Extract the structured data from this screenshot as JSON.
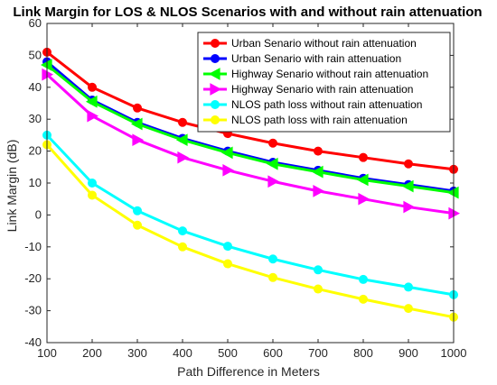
{
  "chart_data": {
    "type": "line",
    "title": "Link Margin for LOS & NLOS Scenarios with and without rain attenuation",
    "xlabel": "Path Difference in Meters",
    "ylabel": "Link Margin (dB)",
    "xlim": [
      100,
      1000
    ],
    "ylim": [
      -40,
      60
    ],
    "xticks": [
      100,
      200,
      300,
      400,
      500,
      600,
      700,
      800,
      900,
      1000
    ],
    "yticks": [
      -40,
      -30,
      -20,
      -10,
      0,
      10,
      20,
      30,
      40,
      50,
      60
    ],
    "grid": false,
    "legend_position": "top-right",
    "x": [
      100,
      200,
      300,
      400,
      500,
      600,
      700,
      800,
      900,
      1000
    ],
    "series": [
      {
        "name": "Urban Senario without rain attenuation",
        "color": "#ff0000",
        "marker": "circle",
        "values": [
          51,
          40,
          33.5,
          29,
          25.5,
          22.5,
          20,
          18,
          16,
          14.3
        ]
      },
      {
        "name": "Urban Senario with rain attenuation",
        "color": "#0000ff",
        "marker": "circle",
        "values": [
          48,
          36,
          29,
          24,
          20,
          16.5,
          14,
          11.5,
          9.5,
          7.5
        ]
      },
      {
        "name": "Highway Senario without rain attenuation",
        "color": "#00ff00",
        "marker": "triangle-left",
        "values": [
          47,
          35.5,
          28.5,
          23.5,
          19.5,
          16,
          13.5,
          11,
          9,
          7
        ]
      },
      {
        "name": "Highway Senario with rain attenuation",
        "color": "#ff00ff",
        "marker": "triangle-right",
        "values": [
          44,
          31,
          23.5,
          18,
          14,
          10.5,
          7.5,
          5,
          2.5,
          0.5
        ]
      },
      {
        "name": "NLOS path loss without rain attenuation",
        "color": "#00ffff",
        "marker": "circle",
        "values": [
          25,
          10,
          1.3,
          -5,
          -9.8,
          -13.8,
          -17.2,
          -20.2,
          -22.6,
          -25
        ]
      },
      {
        "name": "NLOS path loss with rain attenuation",
        "color": "#ffff00",
        "marker": "circle",
        "values": [
          22,
          6.2,
          -3.2,
          -10,
          -15.3,
          -19.6,
          -23.2,
          -26.4,
          -29.3,
          -32
        ]
      }
    ]
  }
}
